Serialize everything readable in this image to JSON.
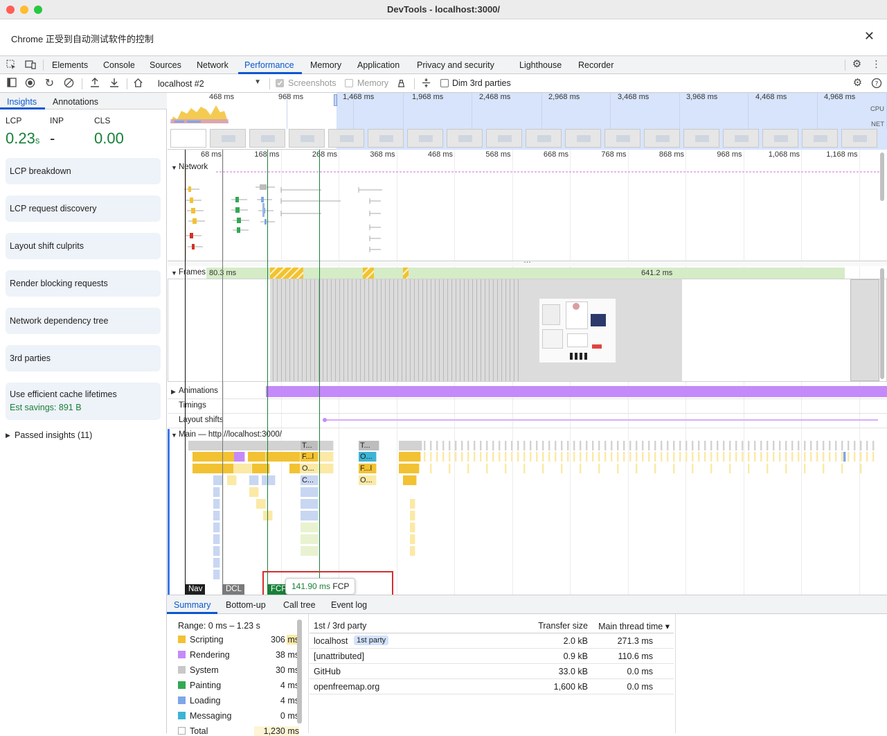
{
  "window": {
    "title": "DevTools - localhost:3000/"
  },
  "infobar": {
    "text": "Chrome 正受到自动测试软件的控制",
    "close": "✕"
  },
  "tabs": [
    "Elements",
    "Console",
    "Sources",
    "Network",
    "Performance",
    "Memory",
    "Application",
    "Privacy and security",
    "Lighthouse",
    "Recorder"
  ],
  "active_tab": "Performance",
  "toolbar": {
    "recording_select": "localhost #2",
    "screenshots_label": "Screenshots",
    "memory_label": "Memory",
    "dim3rd_label": "Dim 3rd parties"
  },
  "sidebar": {
    "tabs": [
      "Insights",
      "Annotations"
    ],
    "metrics": {
      "lcp_label": "LCP",
      "lcp_value": "0.23",
      "lcp_unit": "s",
      "inp_label": "INP",
      "inp_value": "-",
      "cls_label": "CLS",
      "cls_value": "0.00"
    },
    "cards": [
      "LCP breakdown",
      "LCP request discovery",
      "Layout shift culprits",
      "Render blocking requests",
      "Network dependency tree",
      "3rd parties",
      "Use efficient cache lifetimes"
    ],
    "cache_savings": "Est savings: 891 B",
    "passed": "Passed insights (11)"
  },
  "overview": {
    "ticks": [
      "468 ms",
      "968 ms",
      "1,468 ms",
      "1,968 ms",
      "2,468 ms",
      "2,968 ms",
      "3,468 ms",
      "3,968 ms",
      "4,468 ms",
      "4,968 ms"
    ],
    "cpu_label": "CPU",
    "net_label": "NET"
  },
  "ruler": {
    "ticks": [
      "68 ms",
      "168 ms",
      "268 ms",
      "368 ms",
      "468 ms",
      "568 ms",
      "668 ms",
      "768 ms",
      "868 ms",
      "968 ms",
      "1,068 ms",
      "1,168 ms"
    ]
  },
  "tracks": {
    "network": "Network",
    "frames": "Frames",
    "frame1": "80.3 ms",
    "frame2": "641.2 ms",
    "animations": "Animations",
    "timings": "Timings",
    "layout_shifts": "Layout shifts",
    "main": "Main — http://localhost:3000/"
  },
  "flame_labels": [
    "T...",
    "F...l",
    "O...",
    "C...",
    "T...",
    "O...",
    "F...l",
    "O..."
  ],
  "markers": {
    "nav": "Nav",
    "dcl": "DCL",
    "fcp": "FCP"
  },
  "tooltip": {
    "time": "141.90 ms",
    "label": "FCP"
  },
  "bottom_tabs": [
    "Summary",
    "Bottom-up",
    "Call tree",
    "Event log"
  ],
  "summary": {
    "range": "Range: 0 ms – 1.23 s",
    "rows": [
      {
        "label": "Scripting",
        "value": "306 ms",
        "color": "#f2c233"
      },
      {
        "label": "Rendering",
        "value": "38 ms",
        "color": "#c58af9"
      },
      {
        "label": "System",
        "value": "30 ms",
        "color": "#c8c8c8"
      },
      {
        "label": "Painting",
        "value": "4 ms",
        "color": "#34a853"
      },
      {
        "label": "Loading",
        "value": "4 ms",
        "color": "#7ea6e8"
      },
      {
        "label": "Messaging",
        "value": "0 ms",
        "color": "#3eb4d4"
      },
      {
        "label": "Total",
        "value": "1,230 ms",
        "color": "#ffffff"
      }
    ]
  },
  "third_party": {
    "headers": [
      "1st / 3rd party",
      "Transfer size",
      "Main thread time ▾"
    ],
    "rows": [
      {
        "name": "localhost",
        "badge": "1st party",
        "size": "2.0 kB",
        "time": "271.3 ms"
      },
      {
        "name": "[unattributed]",
        "badge": "",
        "size": "0.9 kB",
        "time": "110.6 ms"
      },
      {
        "name": "GitHub",
        "badge": "",
        "size": "33.0 kB",
        "time": "0.0 ms"
      },
      {
        "name": "openfreemap.org",
        "badge": "",
        "size": "1,600 kB",
        "time": "0.0 ms"
      }
    ]
  }
}
